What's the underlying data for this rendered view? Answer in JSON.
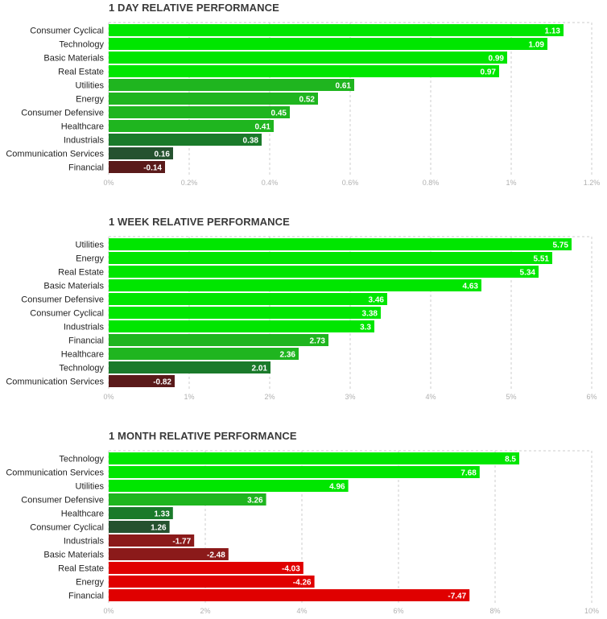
{
  "chart_data": [
    {
      "type": "bar",
      "orientation": "horizontal",
      "title": "1 DAY RELATIVE PERFORMANCE",
      "categories": [
        "Consumer Cyclical",
        "Technology",
        "Basic Materials",
        "Real Estate",
        "Utilities",
        "Energy",
        "Consumer Defensive",
        "Healthcare",
        "Industrials",
        "Communication Services",
        "Financial"
      ],
      "values": [
        1.13,
        1.09,
        0.99,
        0.97,
        0.61,
        0.52,
        0.45,
        0.41,
        0.38,
        0.16,
        -0.14
      ],
      "value_labels": [
        "1.13",
        "1.09",
        "0.99",
        "0.97",
        "0.61",
        "0.52",
        "0.45",
        "0.41",
        "0.38",
        "0.16",
        "-0.14"
      ],
      "xlim": [
        0,
        1.2
      ],
      "ticks": [
        "0%",
        "0.2%",
        "0.4%",
        "0.6%",
        "0.8%",
        "1%",
        "1.2%"
      ],
      "grid": true
    },
    {
      "type": "bar",
      "orientation": "horizontal",
      "title": "1 WEEK RELATIVE PERFORMANCE",
      "categories": [
        "Utilities",
        "Energy",
        "Real Estate",
        "Basic Materials",
        "Consumer Defensive",
        "Consumer Cyclical",
        "Industrials",
        "Financial",
        "Healthcare",
        "Technology",
        "Communication Services"
      ],
      "values": [
        5.75,
        5.51,
        5.34,
        4.63,
        3.46,
        3.38,
        3.3,
        2.73,
        2.36,
        2.01,
        -0.82
      ],
      "value_labels": [
        "5.75",
        "5.51",
        "5.34",
        "4.63",
        "3.46",
        "3.38",
        "3.3",
        "2.73",
        "2.36",
        "2.01",
        "-0.82"
      ],
      "xlim": [
        0,
        6
      ],
      "ticks": [
        "0%",
        "1%",
        "2%",
        "3%",
        "4%",
        "5%",
        "6%"
      ],
      "grid": true
    },
    {
      "type": "bar",
      "orientation": "horizontal",
      "title": "1 MONTH RELATIVE PERFORMANCE",
      "categories": [
        "Technology",
        "Communication Services",
        "Utilities",
        "Consumer Defensive",
        "Healthcare",
        "Consumer Cyclical",
        "Industrials",
        "Basic Materials",
        "Real Estate",
        "Energy",
        "Financial"
      ],
      "values": [
        8.5,
        7.68,
        4.96,
        3.26,
        1.33,
        1.26,
        -1.77,
        -2.48,
        -4.03,
        -4.26,
        -7.47
      ],
      "value_labels": [
        "8.5",
        "7.68",
        "4.96",
        "3.26",
        "1.33",
        "1.26",
        "-1.77",
        "-2.48",
        "-4.03",
        "-4.26",
        "-7.47"
      ],
      "xlim": [
        0,
        10
      ],
      "ticks": [
        "0%",
        "2%",
        "4%",
        "6%",
        "8%",
        "10%"
      ],
      "grid": true
    }
  ],
  "colors": {
    "positive_strong": "#00e600",
    "positive_mid": "#1fb51f",
    "positive_low": "#1a7a2a",
    "positive_weak": "#25522f",
    "negative_weak": "#5a1a1a",
    "negative_mid": "#8b1a1a",
    "negative_strong": "#e00000",
    "grid": "#cccccc",
    "tick_text": "#b0b0b0"
  }
}
